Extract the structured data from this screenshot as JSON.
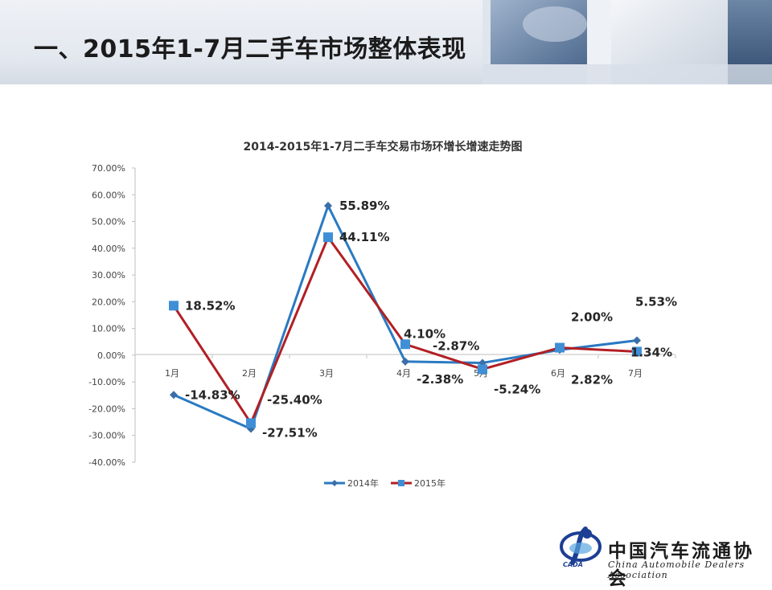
{
  "page": {
    "title": "一、2015年1-7月二手车市场整体表现"
  },
  "logo": {
    "name_cn": "中国汽车流通协会",
    "name_en": "China Automobile Dealers Association",
    "abbr": "CADA"
  },
  "chart_data": {
    "type": "line",
    "title": "2014-2015年1-7月二手车交易市场环增长增速走势图",
    "categories": [
      "1月",
      "2月",
      "3月",
      "4月",
      "5月",
      "6月",
      "7月"
    ],
    "series": [
      {
        "name": "2014年",
        "values": [
          -14.83,
          -27.51,
          55.89,
          -2.38,
          -2.87,
          2.0,
          5.53
        ],
        "labels": [
          "-14.83%",
          "-27.51%",
          "55.89%",
          "-2.38%",
          "-2.87%",
          "2.00%",
          "5.53%"
        ],
        "color": "#2a7ac2",
        "marker": "diamond"
      },
      {
        "name": "2015年",
        "values": [
          18.52,
          -25.4,
          44.11,
          4.1,
          -5.24,
          2.82,
          1.34
        ],
        "labels": [
          "18.52%",
          "-25.40%",
          "44.11%",
          "4.10%",
          "-5.24%",
          "2.82%",
          "1.34%"
        ],
        "color": "#b21f24",
        "marker": "square"
      }
    ],
    "yticks": [
      "70.00%",
      "60.00%",
      "50.00%",
      "40.00%",
      "30.00%",
      "20.00%",
      "10.00%",
      "0.00%",
      "-10.00%",
      "-20.00%",
      "-30.00%",
      "-40.00%"
    ],
    "ylim": [
      -40,
      70
    ],
    "legend_position": "bottom",
    "grid": false
  }
}
